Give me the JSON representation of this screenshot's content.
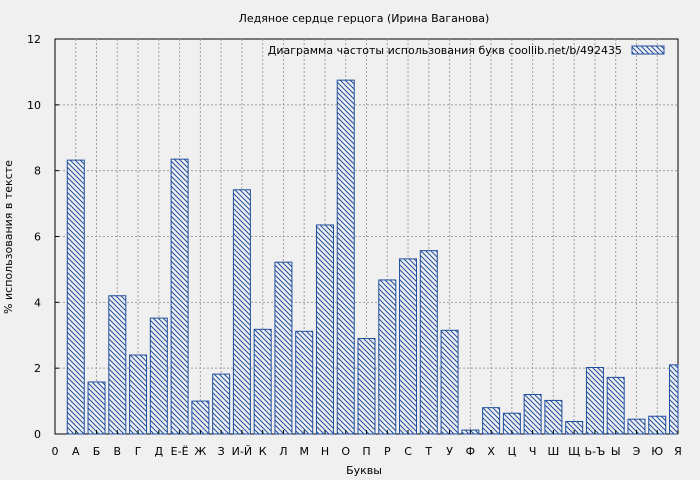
{
  "chart_data": {
    "type": "bar",
    "title": "Ледяное сердце герцога (Ирина Ваганова)",
    "legend_text": "Диаграмма частоты использования букв  coollib.net/b/492435",
    "legend_position": "top-right",
    "xlabel": "Буквы",
    "ylabel": "% использования в тексте",
    "ylim": [
      0,
      12
    ],
    "yticks": [
      "0",
      "2",
      "4",
      "6",
      "8",
      "10",
      "12"
    ],
    "grid": true,
    "categories": [
      "0",
      "А",
      "Б",
      "В",
      "Г",
      "Д",
      "Е-Ё",
      "Ж",
      "З",
      "И-Й",
      "К",
      "Л",
      "М",
      "Н",
      "О",
      "П",
      "Р",
      "С",
      "Т",
      "У",
      "Ф",
      "Х",
      "Ц",
      "Ч",
      "Ш",
      "Щ",
      "Ь-Ъ",
      "Ы",
      "Э",
      "Ю",
      "Я"
    ],
    "values": [
      null,
      8.32,
      1.58,
      4.2,
      2.4,
      3.52,
      8.35,
      1.0,
      1.82,
      7.42,
      3.18,
      5.22,
      3.12,
      6.35,
      10.75,
      2.9,
      4.68,
      5.32,
      5.57,
      3.15,
      0.12,
      0.8,
      0.63,
      1.2,
      1.02,
      0.38,
      2.02,
      1.72,
      0.45,
      0.54,
      2.1
    ],
    "colors": {
      "bar_stroke": "#1f4e9e",
      "background": "#f0f0f0",
      "plot_bg": "#f0f0f0",
      "grid": "#a0a0a0"
    }
  }
}
